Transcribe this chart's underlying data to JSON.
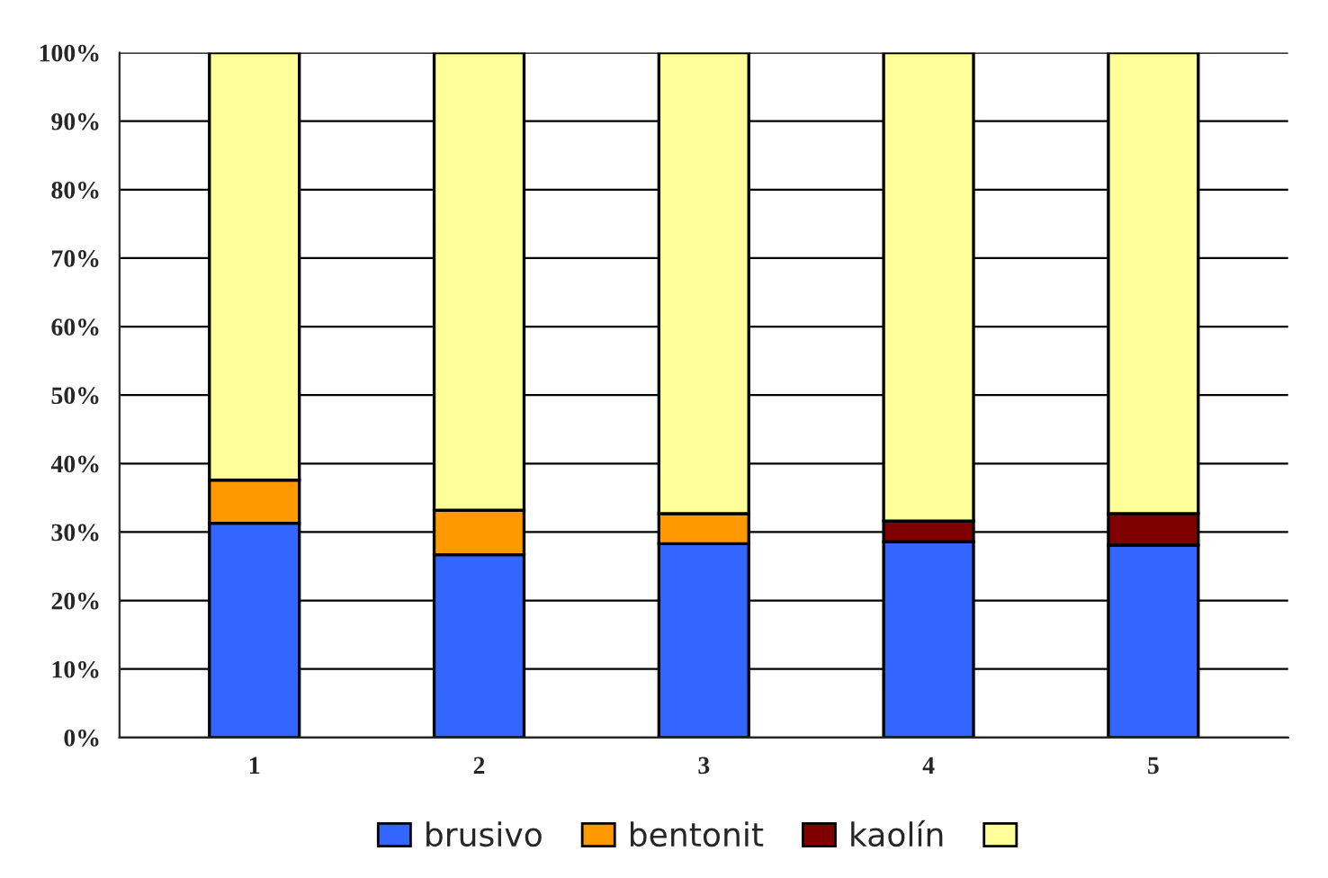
{
  "chart_data": {
    "type": "bar",
    "stacked": true,
    "categories": [
      "1",
      "2",
      "3",
      "4",
      "5"
    ],
    "series": [
      {
        "name": "brusivo",
        "color": "#3366ff",
        "values": [
          31.3,
          26.7,
          28.3,
          28.6,
          28.1
        ]
      },
      {
        "name": "bentonit",
        "color": "#ff9900",
        "values": [
          6.3,
          6.5,
          4.4,
          0,
          0
        ]
      },
      {
        "name": "kaolín",
        "color": "#800000",
        "values": [
          0,
          0,
          0,
          3.0,
          4.6
        ]
      },
      {
        "color": "#ffff99",
        "values": [
          62.4,
          66.8,
          67.3,
          68.4,
          67.3
        ]
      }
    ],
    "ylim": [
      0,
      100
    ],
    "yticks": [
      {
        "value": 0,
        "label": "0%"
      },
      {
        "value": 10,
        "label": "10%"
      },
      {
        "value": 20,
        "label": "20%"
      },
      {
        "value": 30,
        "label": "30%"
      },
      {
        "value": 40,
        "label": "40%"
      },
      {
        "value": 50,
        "label": "50%"
      },
      {
        "value": 60,
        "label": "60%"
      },
      {
        "value": 70,
        "label": "70%"
      },
      {
        "value": 80,
        "label": "80%"
      },
      {
        "value": 90,
        "label": "90%"
      },
      {
        "value": 100,
        "label": "100%"
      }
    ],
    "grid": "y",
    "legend": "bottom"
  }
}
